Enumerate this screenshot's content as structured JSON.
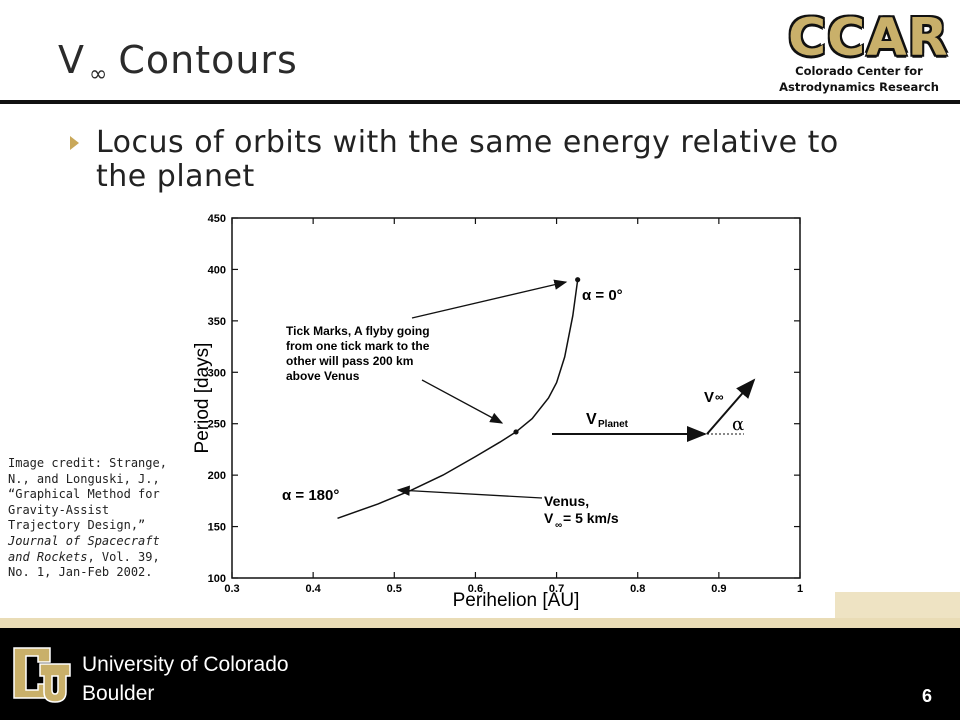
{
  "title": {
    "main": "V",
    "subscript": "∞",
    "rest": "Contours"
  },
  "logo": {
    "abbrev": "CCAR",
    "line1": "Colorado Center for",
    "line2": "Astrodynamics Research"
  },
  "bullet": {
    "line1": "Locus of orbits with the same energy relative to",
    "line2": "the planet"
  },
  "credit": {
    "plain1": "Image credit: Strange, N., and Longuski, J., “Graphical Method for Gravity-Assist Trajectory Design,” ",
    "italic": "Journal of Spacecraft and Rockets",
    "plain2": ", Vol. 39, No. 1, Jan-Feb 2002."
  },
  "footer": {
    "line1": "University of Colorado",
    "line2": "Boulder",
    "page": "6"
  },
  "chart_data": {
    "type": "line",
    "xlabel": "Perihelion [AU]",
    "ylabel": "Period [days]",
    "xlim": [
      0.3,
      1.0
    ],
    "ylim": [
      100,
      450
    ],
    "xticks": [
      "0.3",
      "0.4",
      "0.5",
      "0.6",
      "0.7",
      "0.8",
      "0.9",
      "1"
    ],
    "yticks": [
      "100",
      "150",
      "200",
      "250",
      "300",
      "350",
      "400",
      "450"
    ],
    "grid": false,
    "series": [
      {
        "x": [
          0.43,
          0.48,
          0.52,
          0.56,
          0.6,
          0.63,
          0.65,
          0.67,
          0.69,
          0.7,
          0.71,
          0.72,
          0.726
        ],
        "y": [
          158,
          172,
          185,
          200,
          218,
          232,
          242,
          255,
          275,
          290,
          315,
          355,
          390
        ]
      }
    ],
    "tick_marks": [
      {
        "x": 0.726,
        "y": 390
      },
      {
        "x": 0.65,
        "y": 242
      }
    ],
    "annotations": {
      "alpha0": "α = 0°",
      "alpha180": "α = 180°",
      "tick_note": [
        "Tick Marks, A flyby going",
        "from one tick mark to the",
        "other will pass 200 km",
        "above Venus"
      ],
      "venus": [
        "Venus,",
        "V",
        "∞",
        " = 5 km/s"
      ],
      "vplanet": "V",
      "vplanet_sub": "Planet",
      "vinf": "V",
      "vinf_sub": "∞",
      "alpha": "α"
    }
  }
}
